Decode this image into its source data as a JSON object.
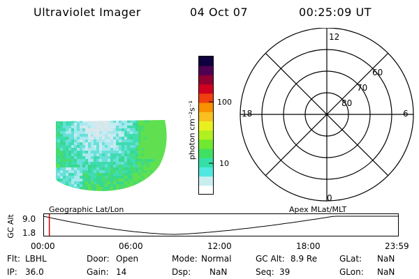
{
  "header": {
    "instrument": "Ultraviolet Imager",
    "date": "04 Oct 07",
    "time": "00:25:09 UT"
  },
  "colorbar": {
    "unit_label": "photon cm⁻²s⁻¹",
    "ticks": [
      "100",
      "10"
    ],
    "colors": [
      "#ffffff",
      "#c8eef0",
      "#50e8e0",
      "#34e0a8",
      "#40e060",
      "#70e830",
      "#b0f020",
      "#e8f020",
      "#f8c020",
      "#f89000",
      "#f04010",
      "#d00020",
      "#900030",
      "#500050",
      "#100040"
    ]
  },
  "geo_map": {
    "label": "Geographic Lat/Lon",
    "palette": [
      "#dde6ea",
      "#c8ecf2",
      "#a8e8ee",
      "#68e0d8",
      "#40dcb0",
      "#38d890",
      "#48dc70",
      "#60e050"
    ]
  },
  "polar_plot": {
    "label": "Apex MLat/MLT",
    "mlt_labels": {
      "top": "12",
      "left": "18",
      "right": "6",
      "bottom": "0"
    },
    "lat_labels": [
      "60",
      "70",
      "80"
    ]
  },
  "altitude_plot": {
    "axis_label": "GC Alt",
    "y_ticks": [
      "9.0",
      "1.8"
    ],
    "x_ticks": [
      "00:00",
      "06:00",
      "12:00",
      "18:00",
      "23:59"
    ],
    "current_fraction": 0.017
  },
  "status": {
    "row1": [
      {
        "label": "Flt:",
        "value": "LBHL"
      },
      {
        "label": "Door:",
        "value": "Open"
      },
      {
        "label": "Mode:",
        "value": "Normal"
      },
      {
        "label": "GC Alt:",
        "value": "8.9 Re"
      },
      {
        "label": "GLat:",
        "value": "NaN"
      }
    ],
    "row2": [
      {
        "label": "IP:",
        "value": "36.0"
      },
      {
        "label": "Gain:",
        "value": "14"
      },
      {
        "label": "Dsp:",
        "value": "NaN"
      },
      {
        "label": "Seq:",
        "value": "39"
      },
      {
        "label": "GLon:",
        "value": "NaN"
      }
    ]
  }
}
